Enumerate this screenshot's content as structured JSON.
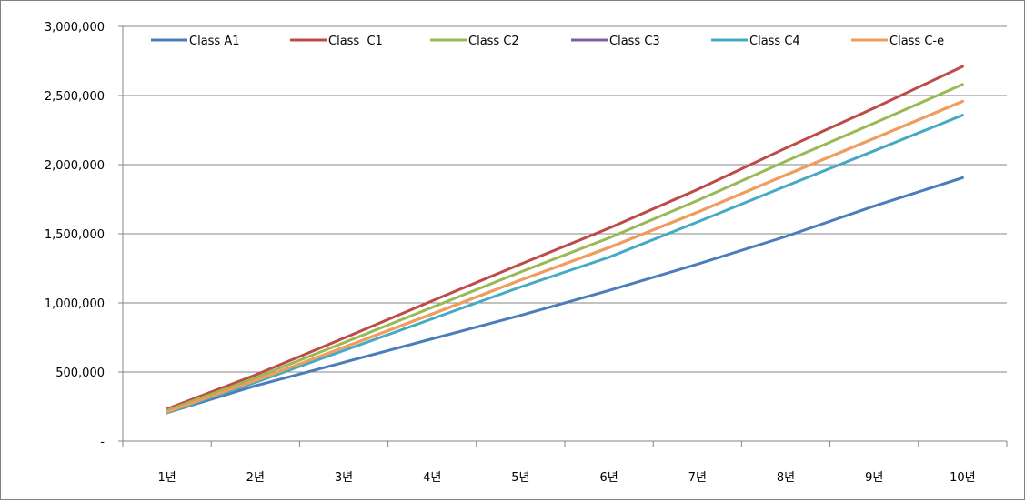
{
  "chart_data": {
    "type": "line",
    "title": "",
    "xlabel": "",
    "ylabel": "",
    "categories": [
      "1년",
      "2년",
      "3년",
      "4년",
      "5년",
      "6년",
      "7년",
      "8년",
      "9년",
      "10년"
    ],
    "y_ticks": [
      {
        "value": 0,
        "label": "-"
      },
      {
        "value": 500000,
        "label": "500,000"
      },
      {
        "value": 1000000,
        "label": "1,000,000"
      },
      {
        "value": 1500000,
        "label": "1,500,000"
      },
      {
        "value": 2000000,
        "label": "2,000,000"
      },
      {
        "value": 2500000,
        "label": "2,500,000"
      },
      {
        "value": 3000000,
        "label": "3,000,000"
      }
    ],
    "ylim": [
      0,
      3000000
    ],
    "grid": "horizontal",
    "legend_position": "top",
    "series": [
      {
        "name": "Class A1",
        "color": "#4a7ebb",
        "values": [
          205000,
          400000,
          570000,
          740000,
          910000,
          1090000,
          1280000,
          1480000,
          1700000,
          1905000
        ]
      },
      {
        "name": "Class  C1",
        "color": "#be4b48",
        "values": [
          232000,
          478000,
          745000,
          1015000,
          1280000,
          1540000,
          1820000,
          2120000,
          2410000,
          2710000
        ]
      },
      {
        "name": "Class C2",
        "color": "#98b954",
        "values": [
          222000,
          458000,
          712000,
          968000,
          1224000,
          1470000,
          1740000,
          2025000,
          2300000,
          2580000
        ]
      },
      {
        "name": "Class C3",
        "color": "#7d60a0",
        "values": [
          212000,
          438000,
          678000,
          920000,
          1165000,
          1400000,
          1655000,
          1925000,
          2190000,
          2458000
        ]
      },
      {
        "name": "Class C4",
        "color": "#46aac5",
        "values": [
          205000,
          425000,
          655000,
          885000,
          1115000,
          1330000,
          1585000,
          1845000,
          2100000,
          2358000
        ]
      },
      {
        "name": "Class C-e",
        "color": "#f59d56",
        "values": [
          212000,
          438000,
          678000,
          920000,
          1165000,
          1400000,
          1655000,
          1925000,
          2190000,
          2458000
        ]
      }
    ]
  }
}
